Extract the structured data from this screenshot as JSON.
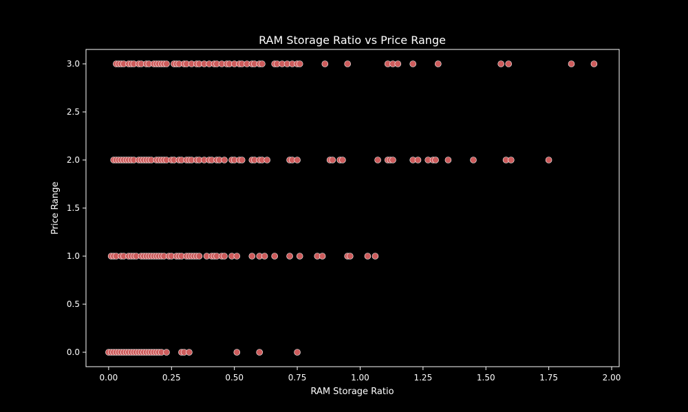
{
  "chart_data": {
    "type": "scatter",
    "title": "RAM Storage Ratio vs Price Range",
    "xlabel": "RAM Storage Ratio",
    "ylabel": "Price Range",
    "xlim": [
      -0.09,
      2.03
    ],
    "ylim": [
      -0.15,
      3.15
    ],
    "xticks": [
      "0.00",
      "0.25",
      "0.50",
      "0.75",
      "1.00",
      "1.25",
      "1.50",
      "1.75",
      "2.00"
    ],
    "yticks": [
      "0.0",
      "0.5",
      "1.0",
      "1.5",
      "2.0",
      "2.5",
      "3.0"
    ],
    "grid": false,
    "marker_color": "#cd5c5c",
    "marker_edge_color": "#ffffff",
    "background_color": "#000000",
    "series": [
      {
        "values": [
          {
            "x": 0.0,
            "y": 0
          },
          {
            "x": 0.01,
            "y": 0
          },
          {
            "x": 0.02,
            "y": 0
          },
          {
            "x": 0.03,
            "y": 0
          },
          {
            "x": 0.04,
            "y": 0
          },
          {
            "x": 0.05,
            "y": 0
          },
          {
            "x": 0.06,
            "y": 0
          },
          {
            "x": 0.07,
            "y": 0
          },
          {
            "x": 0.08,
            "y": 0
          },
          {
            "x": 0.09,
            "y": 0
          },
          {
            "x": 0.1,
            "y": 0
          },
          {
            "x": 0.11,
            "y": 0
          },
          {
            "x": 0.12,
            "y": 0
          },
          {
            "x": 0.13,
            "y": 0
          },
          {
            "x": 0.14,
            "y": 0
          },
          {
            "x": 0.15,
            "y": 0
          },
          {
            "x": 0.16,
            "y": 0
          },
          {
            "x": 0.17,
            "y": 0
          },
          {
            "x": 0.18,
            "y": 0
          },
          {
            "x": 0.19,
            "y": 0
          },
          {
            "x": 0.2,
            "y": 0
          },
          {
            "x": 0.21,
            "y": 0
          },
          {
            "x": 0.23,
            "y": 0
          },
          {
            "x": 0.29,
            "y": 0
          },
          {
            "x": 0.3,
            "y": 0
          },
          {
            "x": 0.32,
            "y": 0
          },
          {
            "x": 0.51,
            "y": 0
          },
          {
            "x": 0.6,
            "y": 0
          },
          {
            "x": 0.75,
            "y": 0
          },
          {
            "x": 0.01,
            "y": 1
          },
          {
            "x": 0.02,
            "y": 1
          },
          {
            "x": 0.03,
            "y": 1
          },
          {
            "x": 0.05,
            "y": 1
          },
          {
            "x": 0.06,
            "y": 1
          },
          {
            "x": 0.08,
            "y": 1
          },
          {
            "x": 0.09,
            "y": 1
          },
          {
            "x": 0.1,
            "y": 1
          },
          {
            "x": 0.11,
            "y": 1
          },
          {
            "x": 0.13,
            "y": 1
          },
          {
            "x": 0.14,
            "y": 1
          },
          {
            "x": 0.15,
            "y": 1
          },
          {
            "x": 0.16,
            "y": 1
          },
          {
            "x": 0.17,
            "y": 1
          },
          {
            "x": 0.18,
            "y": 1
          },
          {
            "x": 0.19,
            "y": 1
          },
          {
            "x": 0.2,
            "y": 1
          },
          {
            "x": 0.21,
            "y": 1
          },
          {
            "x": 0.22,
            "y": 1
          },
          {
            "x": 0.24,
            "y": 1
          },
          {
            "x": 0.25,
            "y": 1
          },
          {
            "x": 0.27,
            "y": 1
          },
          {
            "x": 0.28,
            "y": 1
          },
          {
            "x": 0.29,
            "y": 1
          },
          {
            "x": 0.31,
            "y": 1
          },
          {
            "x": 0.32,
            "y": 1
          },
          {
            "x": 0.33,
            "y": 1
          },
          {
            "x": 0.34,
            "y": 1
          },
          {
            "x": 0.35,
            "y": 1
          },
          {
            "x": 0.36,
            "y": 1
          },
          {
            "x": 0.39,
            "y": 1
          },
          {
            "x": 0.41,
            "y": 1
          },
          {
            "x": 0.42,
            "y": 1
          },
          {
            "x": 0.43,
            "y": 1
          },
          {
            "x": 0.45,
            "y": 1
          },
          {
            "x": 0.46,
            "y": 1
          },
          {
            "x": 0.49,
            "y": 1
          },
          {
            "x": 0.51,
            "y": 1
          },
          {
            "x": 0.57,
            "y": 1
          },
          {
            "x": 0.6,
            "y": 1
          },
          {
            "x": 0.62,
            "y": 1
          },
          {
            "x": 0.66,
            "y": 1
          },
          {
            "x": 0.72,
            "y": 1
          },
          {
            "x": 0.76,
            "y": 1
          },
          {
            "x": 0.83,
            "y": 1
          },
          {
            "x": 0.85,
            "y": 1
          },
          {
            "x": 0.95,
            "y": 1
          },
          {
            "x": 0.96,
            "y": 1
          },
          {
            "x": 1.03,
            "y": 1
          },
          {
            "x": 1.06,
            "y": 1
          },
          {
            "x": 0.02,
            "y": 2
          },
          {
            "x": 0.03,
            "y": 2
          },
          {
            "x": 0.04,
            "y": 2
          },
          {
            "x": 0.05,
            "y": 2
          },
          {
            "x": 0.06,
            "y": 2
          },
          {
            "x": 0.07,
            "y": 2
          },
          {
            "x": 0.08,
            "y": 2
          },
          {
            "x": 0.09,
            "y": 2
          },
          {
            "x": 0.1,
            "y": 2
          },
          {
            "x": 0.12,
            "y": 2
          },
          {
            "x": 0.13,
            "y": 2
          },
          {
            "x": 0.14,
            "y": 2
          },
          {
            "x": 0.15,
            "y": 2
          },
          {
            "x": 0.16,
            "y": 2
          },
          {
            "x": 0.17,
            "y": 2
          },
          {
            "x": 0.19,
            "y": 2
          },
          {
            "x": 0.2,
            "y": 2
          },
          {
            "x": 0.21,
            "y": 2
          },
          {
            "x": 0.22,
            "y": 2
          },
          {
            "x": 0.23,
            "y": 2
          },
          {
            "x": 0.25,
            "y": 2
          },
          {
            "x": 0.26,
            "y": 2
          },
          {
            "x": 0.28,
            "y": 2
          },
          {
            "x": 0.29,
            "y": 2
          },
          {
            "x": 0.31,
            "y": 2
          },
          {
            "x": 0.32,
            "y": 2
          },
          {
            "x": 0.33,
            "y": 2
          },
          {
            "x": 0.35,
            "y": 2
          },
          {
            "x": 0.36,
            "y": 2
          },
          {
            "x": 0.38,
            "y": 2
          },
          {
            "x": 0.4,
            "y": 2
          },
          {
            "x": 0.41,
            "y": 2
          },
          {
            "x": 0.43,
            "y": 2
          },
          {
            "x": 0.44,
            "y": 2
          },
          {
            "x": 0.46,
            "y": 2
          },
          {
            "x": 0.49,
            "y": 2
          },
          {
            "x": 0.5,
            "y": 2
          },
          {
            "x": 0.52,
            "y": 2
          },
          {
            "x": 0.53,
            "y": 2
          },
          {
            "x": 0.57,
            "y": 2
          },
          {
            "x": 0.58,
            "y": 2
          },
          {
            "x": 0.6,
            "y": 2
          },
          {
            "x": 0.61,
            "y": 2
          },
          {
            "x": 0.63,
            "y": 2
          },
          {
            "x": 0.72,
            "y": 2
          },
          {
            "x": 0.73,
            "y": 2
          },
          {
            "x": 0.75,
            "y": 2
          },
          {
            "x": 0.88,
            "y": 2
          },
          {
            "x": 0.89,
            "y": 2
          },
          {
            "x": 0.92,
            "y": 2
          },
          {
            "x": 0.93,
            "y": 2
          },
          {
            "x": 1.07,
            "y": 2
          },
          {
            "x": 1.11,
            "y": 2
          },
          {
            "x": 1.12,
            "y": 2
          },
          {
            "x": 1.13,
            "y": 2
          },
          {
            "x": 1.21,
            "y": 2
          },
          {
            "x": 1.23,
            "y": 2
          },
          {
            "x": 1.27,
            "y": 2
          },
          {
            "x": 1.29,
            "y": 2
          },
          {
            "x": 1.3,
            "y": 2
          },
          {
            "x": 1.35,
            "y": 2
          },
          {
            "x": 1.45,
            "y": 2
          },
          {
            "x": 1.58,
            "y": 2
          },
          {
            "x": 1.6,
            "y": 2
          },
          {
            "x": 1.75,
            "y": 2
          },
          {
            "x": 0.03,
            "y": 3
          },
          {
            "x": 0.04,
            "y": 3
          },
          {
            "x": 0.05,
            "y": 3
          },
          {
            "x": 0.06,
            "y": 3
          },
          {
            "x": 0.08,
            "y": 3
          },
          {
            "x": 0.09,
            "y": 3
          },
          {
            "x": 0.1,
            "y": 3
          },
          {
            "x": 0.12,
            "y": 3
          },
          {
            "x": 0.13,
            "y": 3
          },
          {
            "x": 0.15,
            "y": 3
          },
          {
            "x": 0.16,
            "y": 3
          },
          {
            "x": 0.18,
            "y": 3
          },
          {
            "x": 0.19,
            "y": 3
          },
          {
            "x": 0.2,
            "y": 3
          },
          {
            "x": 0.21,
            "y": 3
          },
          {
            "x": 0.22,
            "y": 3
          },
          {
            "x": 0.23,
            "y": 3
          },
          {
            "x": 0.26,
            "y": 3
          },
          {
            "x": 0.27,
            "y": 3
          },
          {
            "x": 0.28,
            "y": 3
          },
          {
            "x": 0.3,
            "y": 3
          },
          {
            "x": 0.31,
            "y": 3
          },
          {
            "x": 0.33,
            "y": 3
          },
          {
            "x": 0.35,
            "y": 3
          },
          {
            "x": 0.36,
            "y": 3
          },
          {
            "x": 0.38,
            "y": 3
          },
          {
            "x": 0.4,
            "y": 3
          },
          {
            "x": 0.42,
            "y": 3
          },
          {
            "x": 0.43,
            "y": 3
          },
          {
            "x": 0.45,
            "y": 3
          },
          {
            "x": 0.47,
            "y": 3
          },
          {
            "x": 0.48,
            "y": 3
          },
          {
            "x": 0.5,
            "y": 3
          },
          {
            "x": 0.52,
            "y": 3
          },
          {
            "x": 0.53,
            "y": 3
          },
          {
            "x": 0.55,
            "y": 3
          },
          {
            "x": 0.57,
            "y": 3
          },
          {
            "x": 0.58,
            "y": 3
          },
          {
            "x": 0.6,
            "y": 3
          },
          {
            "x": 0.61,
            "y": 3
          },
          {
            "x": 0.66,
            "y": 3
          },
          {
            "x": 0.67,
            "y": 3
          },
          {
            "x": 0.69,
            "y": 3
          },
          {
            "x": 0.71,
            "y": 3
          },
          {
            "x": 0.73,
            "y": 3
          },
          {
            "x": 0.75,
            "y": 3
          },
          {
            "x": 0.76,
            "y": 3
          },
          {
            "x": 0.86,
            "y": 3
          },
          {
            "x": 0.95,
            "y": 3
          },
          {
            "x": 1.11,
            "y": 3
          },
          {
            "x": 1.13,
            "y": 3
          },
          {
            "x": 1.15,
            "y": 3
          },
          {
            "x": 1.21,
            "y": 3
          },
          {
            "x": 1.31,
            "y": 3
          },
          {
            "x": 1.56,
            "y": 3
          },
          {
            "x": 1.59,
            "y": 3
          },
          {
            "x": 1.84,
            "y": 3
          },
          {
            "x": 1.93,
            "y": 3
          }
        ]
      }
    ]
  }
}
